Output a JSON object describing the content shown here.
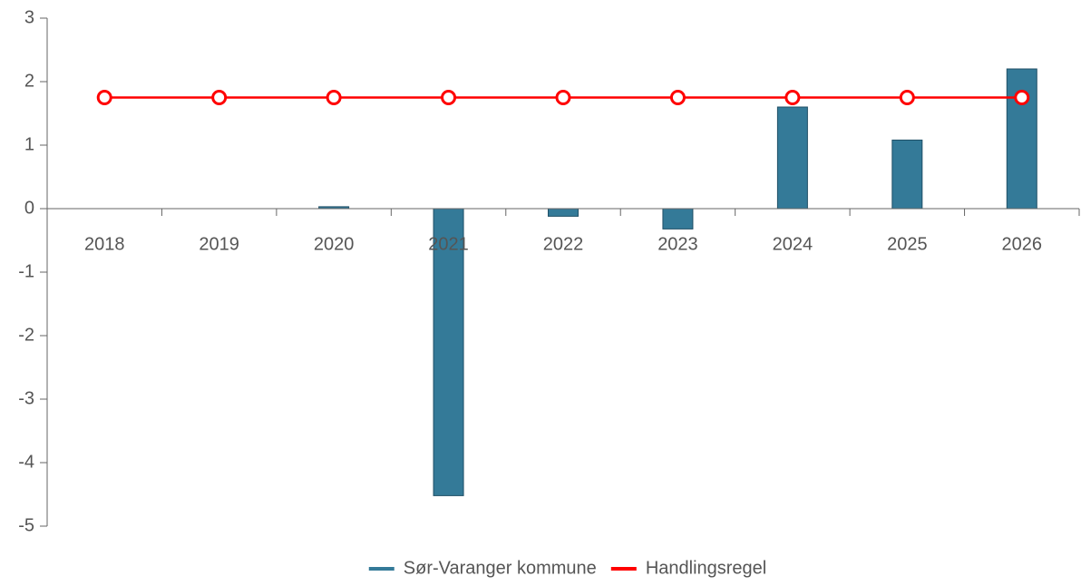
{
  "chart_data": {
    "type": "bar",
    "categories": [
      "2018",
      "2019",
      "2020",
      "2021",
      "2022",
      "2023",
      "2024",
      "2025",
      "2026"
    ],
    "series": [
      {
        "name": "Sør-Varanger kommune",
        "type": "bar",
        "color": "#347a98",
        "values": [
          0,
          0,
          0.03,
          -4.52,
          -0.12,
          -0.32,
          1.6,
          1.08,
          2.2
        ]
      },
      {
        "name": "Handlingsregel",
        "type": "line",
        "color": "#ff0000",
        "values": [
          1.75,
          1.75,
          1.75,
          1.75,
          1.75,
          1.75,
          1.75,
          1.75,
          1.75
        ]
      }
    ],
    "ylim": [
      -5,
      3
    ],
    "yticks": [
      -5,
      -4,
      -3,
      -2,
      -1,
      0,
      1,
      2,
      3
    ],
    "grid": false,
    "legend": "bottom"
  }
}
